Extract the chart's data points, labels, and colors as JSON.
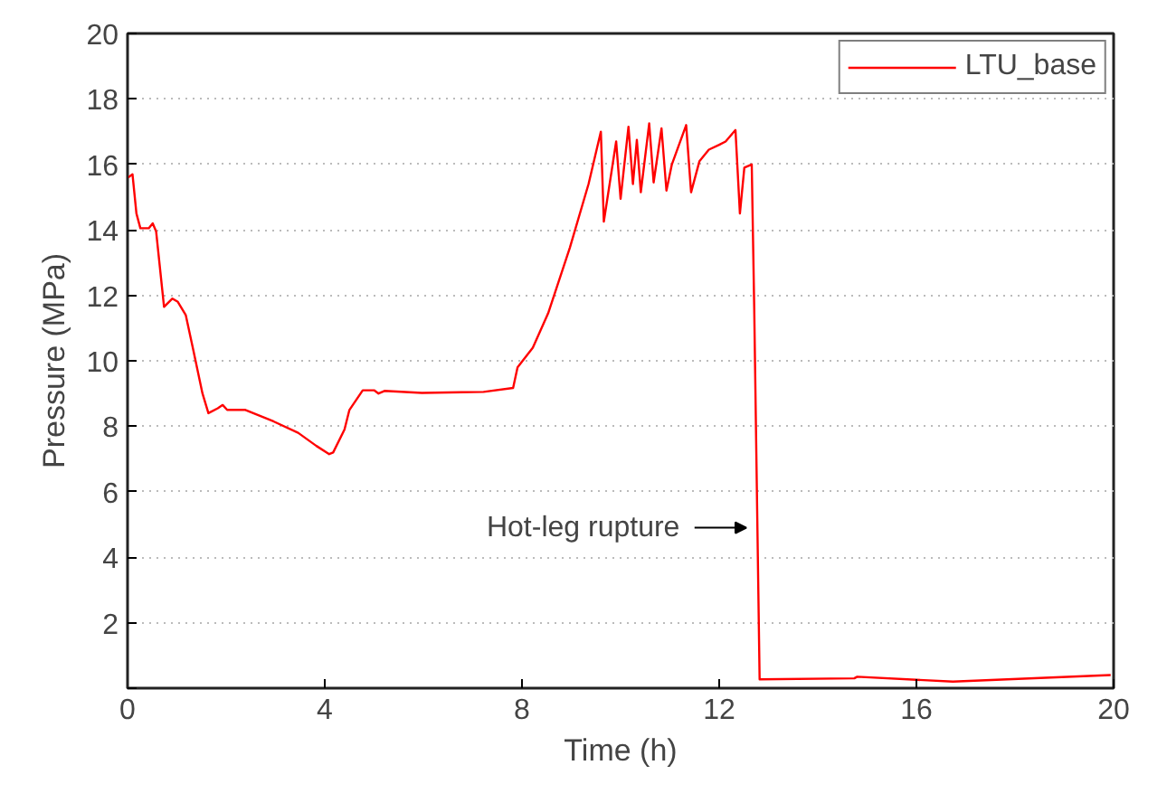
{
  "chart_data": {
    "type": "line",
    "xlabel": "Time (h)",
    "ylabel": "Pressure (MPa)",
    "xlim": [
      0,
      20
    ],
    "ylim": [
      0,
      20
    ],
    "xticks": [
      0,
      4,
      8,
      12,
      16,
      20
    ],
    "yticks": [
      {
        "value": 0,
        "label": null
      },
      2,
      4,
      6,
      8,
      10,
      12,
      14,
      16,
      18,
      20
    ],
    "grid": "y",
    "legend": "top right",
    "line_style": "solid",
    "annotations": [
      {
        "text": "Hot-leg rupture",
        "x": 12.6,
        "y": 4.9
      }
    ],
    "series": [
      {
        "name": "LTU_base",
        "color": "#ff0000",
        "x": [
          0.01,
          0.1,
          0.18,
          0.26,
          0.43,
          0.51,
          0.58,
          0.74,
          0.91,
          1.02,
          1.18,
          1.33,
          1.52,
          1.64,
          1.83,
          1.93,
          2.02,
          2.39,
          2.96,
          3.46,
          3.83,
          4.09,
          4.17,
          4.4,
          4.5,
          4.77,
          5.0,
          5.09,
          5.21,
          5.97,
          7.22,
          7.82,
          7.91,
          8.22,
          8.53,
          8.97,
          9.35,
          9.6,
          9.66,
          9.91,
          10.0,
          10.16,
          10.25,
          10.33,
          10.41,
          10.58,
          10.67,
          10.83,
          10.93,
          11.04,
          11.33,
          11.43,
          11.6,
          11.79,
          12.0,
          12.13,
          12.33,
          12.42,
          12.51,
          12.66,
          12.71,
          12.82,
          14.74,
          14.8,
          16.74,
          19.94
        ],
        "values": [
          15.6,
          15.7,
          14.5,
          14.05,
          14.05,
          14.2,
          13.95,
          11.65,
          11.9,
          11.8,
          11.4,
          10.35,
          9.0,
          8.4,
          8.55,
          8.65,
          8.5,
          8.5,
          8.15,
          7.8,
          7.4,
          7.15,
          7.2,
          7.9,
          8.5,
          9.1,
          9.1,
          9.0,
          9.08,
          9.02,
          9.05,
          9.17,
          9.8,
          10.4,
          11.45,
          13.45,
          15.4,
          17.0,
          14.25,
          16.7,
          14.95,
          17.15,
          15.4,
          16.75,
          15.15,
          17.25,
          15.45,
          17.1,
          15.2,
          16.0,
          17.2,
          15.15,
          16.1,
          16.45,
          16.6,
          16.7,
          17.05,
          14.5,
          15.9,
          16.0,
          11.65,
          0.27,
          0.3,
          0.35,
          0.2,
          0.4
        ]
      }
    ]
  }
}
